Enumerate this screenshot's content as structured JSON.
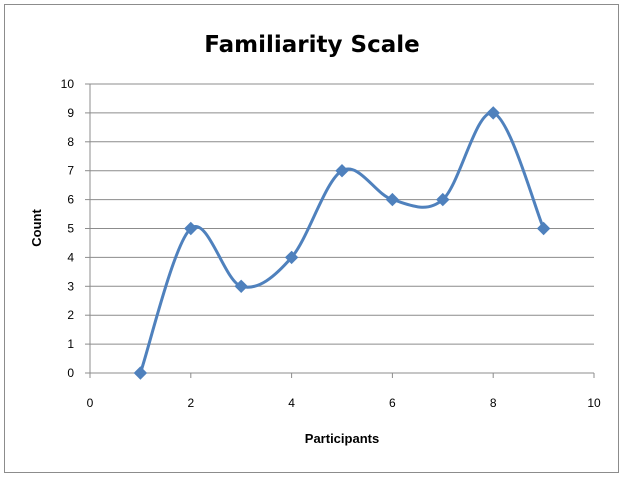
{
  "chart_data": {
    "type": "scatter",
    "title": "Familiarity Scale",
    "xlabel": "Participants",
    "ylabel": "Count",
    "xlim": [
      0,
      10
    ],
    "ylim": [
      0,
      10
    ],
    "x_ticks": [
      "0",
      "2",
      "4",
      "6",
      "8",
      "10"
    ],
    "y_ticks": [
      "0",
      "1",
      "2",
      "3",
      "4",
      "5",
      "6",
      "7",
      "8",
      "9",
      "10"
    ],
    "grid": "horizontal",
    "legend": "none",
    "line_style": "smoothed",
    "series": [
      {
        "color": "#4F81BD",
        "marker": "diamond",
        "x": [
          1,
          2,
          3,
          4,
          5,
          6,
          7,
          8,
          9
        ],
        "y": [
          0,
          5,
          3,
          4,
          7,
          6,
          6,
          9,
          5
        ]
      }
    ]
  }
}
